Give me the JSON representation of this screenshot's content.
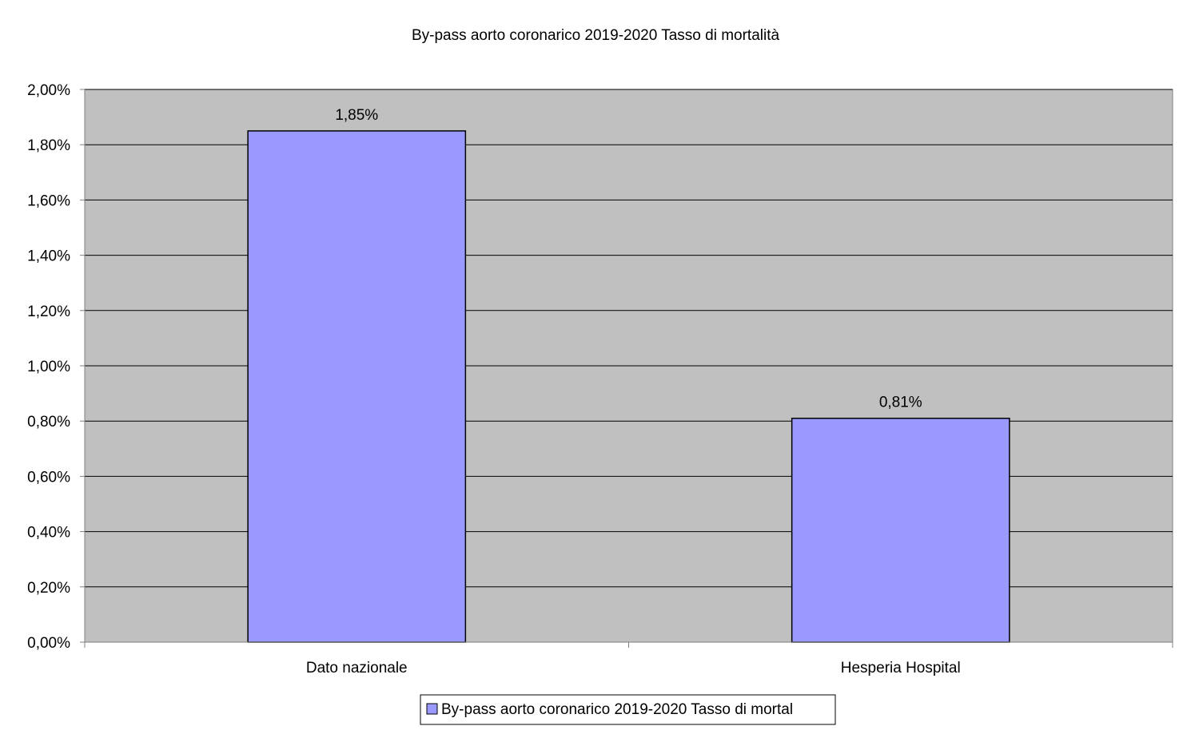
{
  "chart_data": {
    "type": "bar",
    "title": "By-pass aorto coronarico 2019-2020 Tasso di mortalità",
    "categories": [
      "Dato nazionale",
      "Hesperia Hospital"
    ],
    "series": [
      {
        "name": "By-pass aorto coronarico 2019-2020 Tasso di mortal",
        "values": [
          1.85,
          0.81
        ],
        "color": "#9999ff"
      }
    ],
    "data_labels": [
      "1,85%",
      "0,81%"
    ],
    "ylim": [
      0,
      2.0
    ],
    "y_ticks": [
      0,
      0.2,
      0.4,
      0.6,
      0.8,
      1.0,
      1.2,
      1.4,
      1.6,
      1.8,
      2.0
    ],
    "y_tick_labels": [
      "0,00%",
      "0,20%",
      "0,40%",
      "0,60%",
      "0,80%",
      "1,00%",
      "1,20%",
      "1,40%",
      "1,60%",
      "1,80%",
      "2,00%"
    ],
    "grid": true,
    "legend_position": "bottom",
    "plot_background": "#c0c0c0",
    "bar_border_color": "#000000"
  }
}
